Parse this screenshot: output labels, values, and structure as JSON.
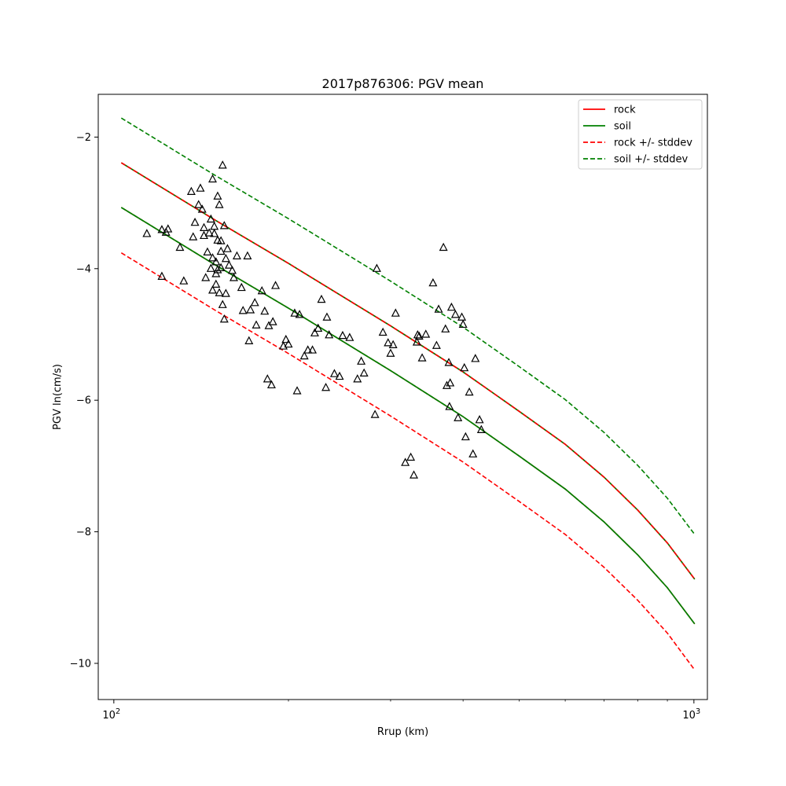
{
  "chart_data": {
    "type": "scatter",
    "title": "2017p876306: PGV mean",
    "xlabel": "Rrup (km)",
    "ylabel": "PGV ln(cm/s)",
    "xscale": "log",
    "xlim": [
      94,
      1055
    ],
    "ylim": [
      -10.55,
      -1.35
    ],
    "x_ticks": [
      {
        "value": 100,
        "base": "10",
        "exp": "2"
      },
      {
        "value": 1000,
        "base": "10",
        "exp": "3"
      }
    ],
    "y_ticks": [
      {
        "value": -2,
        "label": "−2"
      },
      {
        "value": -4,
        "label": "−4"
      },
      {
        "value": -6,
        "label": "−6"
      },
      {
        "value": -8,
        "label": "−8"
      },
      {
        "value": -10,
        "label": "−10"
      }
    ],
    "grid": false,
    "legend_position": "top-right",
    "legend": [
      {
        "label": "rock",
        "color": "#ff0000",
        "dash": "solid"
      },
      {
        "label": "soil",
        "color": "#008000",
        "dash": "solid"
      },
      {
        "label": "rock +/- stddev",
        "color": "#ff0000",
        "dash": "dashed"
      },
      {
        "label": "soil +/- stddev",
        "color": "#008000",
        "dash": "dashed"
      }
    ],
    "lines": [
      {
        "series": "rock",
        "style": "solid",
        "color": "#ff0000",
        "x": [
          103,
          150,
          200,
          300,
          400,
          500,
          600,
          700,
          800,
          900,
          1003
        ],
        "y": [
          -3.07,
          -3.95,
          -4.6,
          -5.55,
          -6.25,
          -6.85,
          -7.35,
          -7.85,
          -8.35,
          -8.85,
          -9.4
        ]
      },
      {
        "series": "rock",
        "style": "solid",
        "color": "#ff0000",
        "x": [
          103,
          150,
          200,
          300,
          400,
          500,
          600,
          700,
          800,
          900,
          1003
        ],
        "y": [
          -2.39,
          -3.27,
          -3.92,
          -4.87,
          -5.57,
          -6.17,
          -6.67,
          -7.17,
          -7.67,
          -8.17,
          -8.72
        ]
      },
      {
        "series": "soil",
        "style": "solid",
        "color": "#008000",
        "x": [
          103,
          150,
          200,
          300,
          400,
          500,
          600,
          700,
          800,
          900,
          1003
        ],
        "y": [
          -3.07,
          -3.95,
          -4.6,
          -5.55,
          -6.25,
          -6.85,
          -7.35,
          -7.85,
          -8.35,
          -8.85,
          -9.4
        ]
      },
      {
        "series": "soil",
        "style": "solid",
        "color": "#008000",
        "x": [
          103,
          150,
          200,
          300,
          400,
          500,
          600,
          700,
          800,
          900,
          1003
        ],
        "y": [
          -2.39,
          -3.27,
          -3.92,
          -4.87,
          -5.57,
          -6.17,
          -6.67,
          -7.17,
          -7.67,
          -8.17,
          -8.72
        ]
      },
      {
        "series": "rock +/- stddev",
        "style": "dashed",
        "color": "#ff0000",
        "x": [
          103,
          150,
          200,
          300,
          400,
          500,
          600,
          700,
          800,
          900,
          1003
        ],
        "y": [
          -2.39,
          -3.27,
          -3.92,
          -4.87,
          -5.57,
          -6.17,
          -6.67,
          -7.17,
          -7.67,
          -8.17,
          -8.72
        ]
      },
      {
        "series": "rock +/- stddev",
        "style": "dashed",
        "color": "#ff0000",
        "x": [
          103,
          150,
          200,
          300,
          400,
          500,
          600,
          700,
          800,
          900,
          1003
        ],
        "y": [
          -3.76,
          -4.64,
          -5.29,
          -6.24,
          -6.94,
          -7.54,
          -8.04,
          -8.54,
          -9.04,
          -9.54,
          -10.1
        ]
      },
      {
        "series": "soil +/- stddev",
        "style": "dashed",
        "color": "#008000",
        "x": [
          103,
          150,
          200,
          300,
          400,
          500,
          600,
          700,
          800,
          900,
          1003
        ],
        "y": [
          -3.07,
          -3.95,
          -4.6,
          -5.55,
          -6.25,
          -6.85,
          -7.35,
          -7.85,
          -8.35,
          -8.85,
          -9.4
        ]
      },
      {
        "series": "soil +/- stddev",
        "style": "dashed",
        "color": "#008000",
        "x": [
          103,
          150,
          200,
          300,
          400,
          500,
          600,
          700,
          800,
          900,
          1003
        ],
        "y": [
          -1.71,
          -2.59,
          -3.24,
          -4.19,
          -4.89,
          -5.49,
          -5.99,
          -6.49,
          -6.99,
          -7.49,
          -8.04
        ]
      }
    ],
    "points": {
      "x": [
        114,
        121,
        123,
        124,
        121,
        130,
        132,
        136,
        137,
        138,
        140,
        141,
        142,
        143,
        143,
        144,
        145,
        146,
        147,
        147,
        148,
        148,
        148,
        149,
        149,
        150,
        150,
        150,
        151,
        151,
        151,
        152,
        152,
        153,
        153,
        153,
        154,
        154,
        155,
        155,
        156,
        156,
        157,
        158,
        160,
        161,
        163,
        166,
        167,
        170,
        171,
        172,
        175,
        176,
        180,
        182,
        184,
        185,
        187,
        188,
        190,
        196,
        198,
        200,
        205,
        207,
        209,
        213,
        216,
        220,
        222,
        225,
        228,
        232,
        233,
        235,
        240,
        245,
        248,
        255,
        263,
        267,
        270,
        282,
        284,
        291,
        297,
        300,
        303,
        306,
        318,
        325,
        329,
        333,
        334,
        336,
        340,
        345,
        355,
        360,
        363,
        370,
        373,
        375,
        378,
        379,
        380,
        382,
        388,
        392,
        398,
        400,
        402,
        404,
        410,
        416,
        420,
        427,
        430
      ],
      "y": [
        -3.47,
        -4.12,
        -3.45,
        -3.4,
        -3.41,
        -3.68,
        -4.19,
        -2.83,
        -3.52,
        -3.3,
        -3.03,
        -2.78,
        -3.1,
        -3.38,
        -3.5,
        -4.14,
        -3.75,
        -3.46,
        -3.25,
        -4.0,
        -3.84,
        -4.33,
        -2.64,
        -3.36,
        -3.47,
        -3.9,
        -4.08,
        -4.24,
        -2.9,
        -3.57,
        -4.02,
        -4.37,
        -3.03,
        -3.58,
        -3.74,
        -3.99,
        -4.55,
        -2.43,
        -3.35,
        -4.77,
        -3.85,
        -4.38,
        -3.7,
        -3.95,
        -4.03,
        -4.14,
        -3.81,
        -4.29,
        -4.64,
        -3.81,
        -5.1,
        -4.63,
        -4.52,
        -4.86,
        -4.34,
        -4.65,
        -5.68,
        -4.87,
        -5.77,
        -4.81,
        -4.26,
        -5.18,
        -5.08,
        -5.15,
        -4.68,
        -5.86,
        -4.7,
        -5.33,
        -5.24,
        -5.24,
        -4.98,
        -4.91,
        -4.47,
        -5.81,
        -4.74,
        -5.01,
        -5.6,
        -5.64,
        -5.02,
        -5.05,
        -5.68,
        -5.41,
        -5.59,
        -6.22,
        -4.0,
        -4.97,
        -5.13,
        -5.29,
        -5.16,
        -4.68,
        -6.95,
        -6.87,
        -7.14,
        -5.12,
        -5.01,
        -5.03,
        -5.36,
        -5.0,
        -4.22,
        -5.17,
        -4.62,
        -3.68,
        -4.92,
        -5.78,
        -5.43,
        -6.1,
        -5.74,
        -4.59,
        -4.7,
        -6.27,
        -4.74,
        -4.85,
        -5.51,
        -6.56,
        -5.88,
        -6.82,
        -5.37,
        -6.3,
        -6.45
      ]
    }
  }
}
